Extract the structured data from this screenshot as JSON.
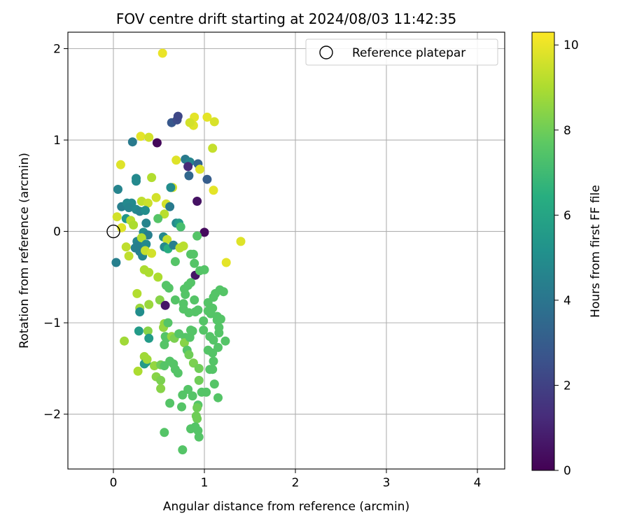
{
  "chart_data": {
    "type": "scatter",
    "title": "FOV centre drift starting at 2024/08/03 11:42:35",
    "xlabel": "Angular distance from reference (arcmin)",
    "ylabel": "Rotation from reference (arcmin)",
    "xlim": [
      -0.5,
      4.3
    ],
    "ylim": [
      -2.6,
      2.18
    ],
    "xticks": [
      0,
      1,
      2,
      3,
      4
    ],
    "xtick_labels": [
      "0",
      "1",
      "2",
      "3",
      "4"
    ],
    "yticks": [
      -2,
      -1,
      0,
      1,
      2
    ],
    "ytick_labels": [
      "−2",
      "−1",
      "0",
      "1",
      "2"
    ],
    "grid": true,
    "legend": {
      "position": "top-right",
      "entries": [
        "Reference platepar"
      ]
    },
    "reference_point": {
      "x": 0,
      "y": 0
    },
    "colorbar": {
      "label": "Hours from first FF file",
      "range": [
        0,
        10.3
      ],
      "ticks": [
        0,
        2,
        4,
        6,
        8,
        10
      ],
      "tick_labels": [
        "0",
        "2",
        "4",
        "6",
        "8",
        "10"
      ],
      "colormap": "viridis"
    },
    "points": [
      [
        0.54,
        1.95,
        10.0
      ],
      [
        0.48,
        0.97,
        0.2
      ],
      [
        0.64,
        1.19,
        2.8
      ],
      [
        0.7,
        1.22,
        2.4
      ],
      [
        0.71,
        1.26,
        2.2
      ],
      [
        0.89,
        1.25,
        9.9
      ],
      [
        1.03,
        1.25,
        9.9
      ],
      [
        0.88,
        1.16,
        9.8
      ],
      [
        0.84,
        1.19,
        9.6
      ],
      [
        1.11,
        1.2,
        9.7
      ],
      [
        0.3,
        1.04,
        9.9
      ],
      [
        0.39,
        1.03,
        9.6
      ],
      [
        0.21,
        0.98,
        4.2
      ],
      [
        1.09,
        0.91,
        9.4
      ],
      [
        0.69,
        0.78,
        9.8
      ],
      [
        0.79,
        0.79,
        4.2
      ],
      [
        0.84,
        0.76,
        4.6
      ],
      [
        0.93,
        0.74,
        3.3
      ],
      [
        0.82,
        0.71,
        1.2
      ],
      [
        0.95,
        0.68,
        9.8
      ],
      [
        0.08,
        0.73,
        9.8
      ],
      [
        0.83,
        0.61,
        3.4
      ],
      [
        1.03,
        0.57,
        3.0
      ],
      [
        0.25,
        0.58,
        4.8
      ],
      [
        0.25,
        0.55,
        4.8
      ],
      [
        0.42,
        0.59,
        9.1
      ],
      [
        0.65,
        0.48,
        9.6
      ],
      [
        0.63,
        0.48,
        5.0
      ],
      [
        1.1,
        0.45,
        9.9
      ],
      [
        0.05,
        0.46,
        4.6
      ],
      [
        0.92,
        0.33,
        0.5
      ],
      [
        0.31,
        0.33,
        9.3
      ],
      [
        0.38,
        0.31,
        9.5
      ],
      [
        0.47,
        0.37,
        9.6
      ],
      [
        0.58,
        0.3,
        9.6
      ],
      [
        0.62,
        0.27,
        4.2
      ],
      [
        0.09,
        0.27,
        4.4
      ],
      [
        0.15,
        0.31,
        4.8
      ],
      [
        0.2,
        0.31,
        4.8
      ],
      [
        0.17,
        0.26,
        4.6
      ],
      [
        0.25,
        0.24,
        4.8
      ],
      [
        0.29,
        0.22,
        4.6
      ],
      [
        0.35,
        0.23,
        5.0
      ],
      [
        0.56,
        0.19,
        9.2
      ],
      [
        0.04,
        0.16,
        9.6
      ],
      [
        0.14,
        0.14,
        5.4
      ],
      [
        0.19,
        0.12,
        9.2
      ],
      [
        0.22,
        0.07,
        9.0
      ],
      [
        0.36,
        0.09,
        4.6
      ],
      [
        0.49,
        0.14,
        7.5
      ],
      [
        0.69,
        0.09,
        4.8
      ],
      [
        0.72,
        0.09,
        5.6
      ],
      [
        0.74,
        0.05,
        7.2
      ],
      [
        0.09,
        0.04,
        9.8
      ],
      [
        0.33,
        -0.01,
        5.0
      ],
      [
        0.38,
        -0.04,
        4.4
      ],
      [
        0.55,
        -0.06,
        4.8
      ],
      [
        0.59,
        -0.09,
        9.4
      ],
      [
        1.0,
        -0.01,
        0.3
      ],
      [
        0.92,
        -0.05,
        7.5
      ],
      [
        0.03,
        -0.34,
        4.4
      ],
      [
        0.26,
        -0.11,
        4.6
      ],
      [
        0.28,
        -0.15,
        4.4
      ],
      [
        0.31,
        -0.07,
        9.1
      ],
      [
        0.36,
        -0.14,
        4.8
      ],
      [
        0.14,
        -0.17,
        9.3
      ],
      [
        0.17,
        -0.27,
        9.3
      ],
      [
        0.24,
        -0.18,
        4.4
      ],
      [
        0.29,
        -0.22,
        4.4
      ],
      [
        0.32,
        -0.27,
        4.6
      ],
      [
        0.35,
        -0.21,
        9.4
      ],
      [
        0.42,
        -0.24,
        9.6
      ],
      [
        0.56,
        -0.17,
        4.8
      ],
      [
        0.6,
        -0.19,
        6.4
      ],
      [
        0.66,
        -0.15,
        4.4
      ],
      [
        0.73,
        -0.18,
        9.2
      ],
      [
        0.77,
        -0.16,
        9.2
      ],
      [
        0.85,
        -0.25,
        7.5
      ],
      [
        0.88,
        -0.25,
        7.5
      ],
      [
        0.68,
        -0.33,
        7.5
      ],
      [
        0.89,
        -0.35,
        7.5
      ],
      [
        0.9,
        -0.48,
        0.6
      ],
      [
        0.95,
        -0.43,
        7.5
      ],
      [
        1.0,
        -0.42,
        7.5
      ],
      [
        1.4,
        -0.11,
        9.8
      ],
      [
        1.24,
        -0.34,
        9.9
      ],
      [
        0.34,
        -0.42,
        9.0
      ],
      [
        0.39,
        -0.45,
        9.0
      ],
      [
        0.49,
        -0.5,
        9.0
      ],
      [
        0.58,
        -0.59,
        7.5
      ],
      [
        0.61,
        -0.62,
        7.5
      ],
      [
        0.78,
        -0.63,
        7.5
      ],
      [
        0.82,
        -0.59,
        7.5
      ],
      [
        0.85,
        -0.56,
        7.5
      ],
      [
        0.79,
        -0.69,
        7.5
      ],
      [
        1.12,
        -0.68,
        7.5
      ],
      [
        1.17,
        -0.64,
        7.5
      ],
      [
        1.21,
        -0.66,
        7.5
      ],
      [
        1.1,
        -0.72,
        7.5
      ],
      [
        1.04,
        -0.78,
        7.5
      ],
      [
        0.26,
        -0.68,
        9.1
      ],
      [
        0.29,
        -0.84,
        8.7
      ],
      [
        0.39,
        -0.8,
        8.7
      ],
      [
        0.51,
        -0.75,
        8.4
      ],
      [
        0.57,
        -0.81,
        0.6
      ],
      [
        0.68,
        -0.75,
        7.5
      ],
      [
        0.77,
        -0.79,
        7.5
      ],
      [
        0.77,
        -0.85,
        7.5
      ],
      [
        0.89,
        -0.75,
        7.5
      ],
      [
        0.9,
        -0.88,
        7.5
      ],
      [
        0.83,
        -0.89,
        7.5
      ],
      [
        0.93,
        -0.86,
        7.5
      ],
      [
        0.99,
        -0.98,
        7.5
      ],
      [
        1.04,
        -0.87,
        7.5
      ],
      [
        1.07,
        -0.9,
        7.5
      ],
      [
        1.09,
        -0.84,
        7.5
      ],
      [
        1.14,
        -0.93,
        7.5
      ],
      [
        1.14,
        -0.97,
        7.5
      ],
      [
        1.18,
        -0.96,
        7.5
      ],
      [
        0.12,
        -1.2,
        8.8
      ],
      [
        0.29,
        -0.88,
        5.0
      ],
      [
        0.28,
        -1.09,
        5.6
      ],
      [
        0.38,
        -1.09,
        8.4
      ],
      [
        0.39,
        -1.17,
        5.6
      ],
      [
        0.55,
        -1.05,
        8.6
      ],
      [
        0.56,
        -1.01,
        8.6
      ],
      [
        0.6,
        -1.0,
        7.5
      ],
      [
        0.57,
        -1.15,
        7.5
      ],
      [
        0.58,
        -1.17,
        7.5
      ],
      [
        0.64,
        -1.15,
        8.6
      ],
      [
        0.67,
        -1.17,
        8.2
      ],
      [
        0.72,
        -1.12,
        7.5
      ],
      [
        0.79,
        -1.16,
        7.5
      ],
      [
        0.78,
        -1.22,
        8.4
      ],
      [
        0.84,
        -1.16,
        7.5
      ],
      [
        0.85,
        -1.08,
        7.5
      ],
      [
        0.87,
        -1.09,
        7.5
      ],
      [
        0.99,
        -1.08,
        7.5
      ],
      [
        1.06,
        -1.15,
        7.5
      ],
      [
        1.1,
        -1.19,
        7.5
      ],
      [
        1.16,
        -1.11,
        7.5
      ],
      [
        1.16,
        -1.05,
        7.5
      ],
      [
        1.23,
        -1.2,
        7.5
      ],
      [
        0.56,
        -1.24,
        7.5
      ],
      [
        1.15,
        -1.27,
        7.5
      ],
      [
        1.04,
        -1.3,
        7.5
      ],
      [
        1.09,
        -1.33,
        7.5
      ],
      [
        1.1,
        -1.42,
        7.5
      ],
      [
        1.06,
        -1.51,
        7.5
      ],
      [
        1.09,
        -1.51,
        7.5
      ],
      [
        0.81,
        -1.3,
        7.5
      ],
      [
        0.83,
        -1.35,
        8.0
      ],
      [
        0.88,
        -1.44,
        8.2
      ],
      [
        0.94,
        -1.5,
        8.0
      ],
      [
        0.34,
        -1.37,
        8.8
      ],
      [
        0.36,
        -1.43,
        5.6
      ],
      [
        0.34,
        -1.45,
        5.6
      ],
      [
        0.37,
        -1.4,
        8.8
      ],
      [
        0.45,
        -1.47,
        8.6
      ],
      [
        0.52,
        -1.46,
        8.0
      ],
      [
        0.56,
        -1.47,
        7.5
      ],
      [
        0.62,
        -1.42,
        7.5
      ],
      [
        0.66,
        -1.45,
        7.5
      ],
      [
        0.68,
        -1.51,
        7.5
      ],
      [
        0.71,
        -1.55,
        7.5
      ],
      [
        0.27,
        -1.53,
        9.0
      ],
      [
        0.47,
        -1.59,
        8.4
      ],
      [
        0.52,
        -1.63,
        8.2
      ],
      [
        0.52,
        -1.72,
        8.4
      ],
      [
        0.62,
        -1.88,
        7.5
      ],
      [
        0.76,
        -1.79,
        7.5
      ],
      [
        0.82,
        -1.73,
        7.5
      ],
      [
        0.87,
        -1.8,
        7.5
      ],
      [
        0.94,
        -1.63,
        8.0
      ],
      [
        0.93,
        -1.9,
        7.5
      ],
      [
        0.92,
        -1.93,
        8.0
      ],
      [
        0.97,
        -1.76,
        7.5
      ],
      [
        1.02,
        -1.76,
        7.5
      ],
      [
        1.11,
        -1.67,
        7.5
      ],
      [
        1.15,
        -1.82,
        7.5
      ],
      [
        0.75,
        -1.92,
        7.5
      ],
      [
        0.91,
        -2.02,
        8.0
      ],
      [
        0.92,
        -2.05,
        8.0
      ],
      [
        0.85,
        -2.16,
        7.5
      ],
      [
        0.9,
        -2.14,
        7.5
      ],
      [
        0.93,
        -2.18,
        7.5
      ],
      [
        0.94,
        -2.25,
        7.5
      ],
      [
        0.56,
        -2.2,
        7.5
      ],
      [
        0.76,
        -2.39,
        7.5
      ]
    ]
  }
}
